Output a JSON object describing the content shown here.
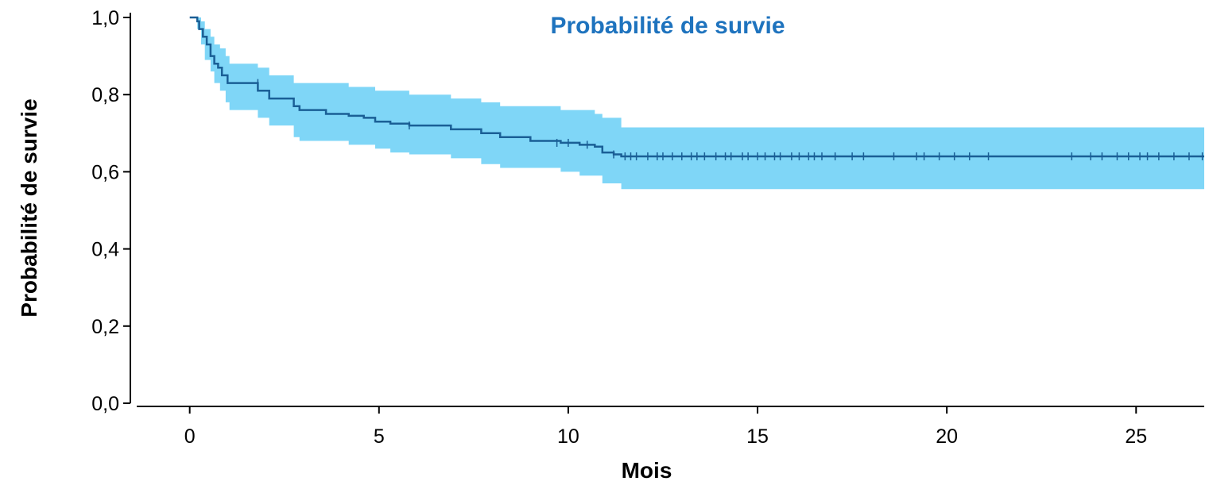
{
  "chart_data": {
    "type": "line",
    "subtype": "kaplan-meier",
    "title": "Probabilité de survie",
    "xlabel": "Mois",
    "ylabel": "Probabilité de survie",
    "xlim": [
      -1.4,
      26.8
    ],
    "ylim": [
      0,
      1
    ],
    "x_ticks": [
      0,
      5,
      10,
      15,
      20,
      25
    ],
    "x_tick_labels": [
      "0",
      "5",
      "10",
      "15",
      "20",
      "25"
    ],
    "y_ticks": [
      0,
      0.2,
      0.4,
      0.6,
      0.8,
      1.0
    ],
    "y_tick_labels": [
      "0,0",
      "0,2",
      "0,4",
      "0,6",
      "0,8",
      "1,0"
    ],
    "grid": false,
    "legend": "none",
    "colors": {
      "title": "#1e73be",
      "line": "#1a5f96",
      "band": "#7fd6f7"
    },
    "series": [
      {
        "steps": [
          [
            0,
            1.0
          ],
          [
            0.2,
            0.99
          ],
          [
            0.25,
            0.97
          ],
          [
            0.35,
            0.95
          ],
          [
            0.45,
            0.93
          ],
          [
            0.55,
            0.9
          ],
          [
            0.65,
            0.88
          ],
          [
            0.75,
            0.87
          ],
          [
            0.85,
            0.85
          ],
          [
            1.0,
            0.83
          ],
          [
            1.8,
            0.81
          ],
          [
            2.1,
            0.79
          ],
          [
            2.75,
            0.77
          ],
          [
            2.9,
            0.76
          ],
          [
            3.6,
            0.75
          ],
          [
            4.2,
            0.745
          ],
          [
            4.6,
            0.74
          ],
          [
            4.9,
            0.73
          ],
          [
            5.3,
            0.725
          ],
          [
            5.8,
            0.72
          ],
          [
            6.9,
            0.71
          ],
          [
            7.7,
            0.7
          ],
          [
            8.2,
            0.69
          ],
          [
            9.0,
            0.68
          ],
          [
            9.8,
            0.675
          ],
          [
            10.3,
            0.67
          ],
          [
            10.7,
            0.665
          ],
          [
            10.9,
            0.65
          ],
          [
            11.2,
            0.645
          ],
          [
            11.4,
            0.64
          ],
          [
            26.8,
            0.64
          ]
        ],
        "ci_lower": [
          [
            0,
            1.0
          ],
          [
            0.2,
            0.97
          ],
          [
            0.3,
            0.93
          ],
          [
            0.4,
            0.89
          ],
          [
            0.55,
            0.86
          ],
          [
            0.65,
            0.83
          ],
          [
            0.8,
            0.81
          ],
          [
            0.95,
            0.78
          ],
          [
            1.05,
            0.76
          ],
          [
            1.8,
            0.74
          ],
          [
            2.1,
            0.72
          ],
          [
            2.75,
            0.69
          ],
          [
            2.9,
            0.68
          ],
          [
            4.2,
            0.67
          ],
          [
            4.9,
            0.66
          ],
          [
            5.3,
            0.65
          ],
          [
            5.8,
            0.645
          ],
          [
            6.9,
            0.635
          ],
          [
            7.7,
            0.62
          ],
          [
            8.2,
            0.61
          ],
          [
            9.8,
            0.6
          ],
          [
            10.3,
            0.59
          ],
          [
            10.9,
            0.57
          ],
          [
            11.4,
            0.555
          ],
          [
            26.8,
            0.555
          ]
        ],
        "ci_upper": [
          [
            0,
            1.0
          ],
          [
            0.2,
            1.0
          ],
          [
            0.3,
            0.99
          ],
          [
            0.4,
            0.97
          ],
          [
            0.55,
            0.95
          ],
          [
            0.65,
            0.93
          ],
          [
            0.8,
            0.92
          ],
          [
            0.95,
            0.9
          ],
          [
            1.05,
            0.88
          ],
          [
            1.8,
            0.87
          ],
          [
            2.1,
            0.85
          ],
          [
            2.75,
            0.83
          ],
          [
            2.9,
            0.83
          ],
          [
            4.2,
            0.82
          ],
          [
            4.9,
            0.81
          ],
          [
            5.8,
            0.8
          ],
          [
            6.9,
            0.79
          ],
          [
            7.7,
            0.78
          ],
          [
            8.2,
            0.77
          ],
          [
            9.8,
            0.76
          ],
          [
            10.7,
            0.75
          ],
          [
            10.9,
            0.74
          ],
          [
            11.4,
            0.715
          ],
          [
            26.8,
            0.715
          ]
        ],
        "censored": [
          [
            1.8,
            0.83
          ],
          [
            5.8,
            0.72
          ],
          [
            9.7,
            0.675
          ],
          [
            10.0,
            0.675
          ],
          [
            10.5,
            0.67
          ],
          [
            11.2,
            0.645
          ],
          [
            11.5,
            0.64
          ],
          [
            11.65,
            0.64
          ],
          [
            11.8,
            0.64
          ],
          [
            12.1,
            0.64
          ],
          [
            12.35,
            0.64
          ],
          [
            12.5,
            0.64
          ],
          [
            12.75,
            0.64
          ],
          [
            13.0,
            0.64
          ],
          [
            13.25,
            0.64
          ],
          [
            13.4,
            0.64
          ],
          [
            13.6,
            0.64
          ],
          [
            13.9,
            0.64
          ],
          [
            14.15,
            0.64
          ],
          [
            14.3,
            0.64
          ],
          [
            14.6,
            0.64
          ],
          [
            14.75,
            0.64
          ],
          [
            15.0,
            0.64
          ],
          [
            15.2,
            0.64
          ],
          [
            15.45,
            0.64
          ],
          [
            15.6,
            0.64
          ],
          [
            15.9,
            0.64
          ],
          [
            16.1,
            0.64
          ],
          [
            16.35,
            0.64
          ],
          [
            16.5,
            0.64
          ],
          [
            16.7,
            0.64
          ],
          [
            17.05,
            0.64
          ],
          [
            17.5,
            0.64
          ],
          [
            17.8,
            0.64
          ],
          [
            18.6,
            0.64
          ],
          [
            19.2,
            0.64
          ],
          [
            19.4,
            0.64
          ],
          [
            19.8,
            0.64
          ],
          [
            20.2,
            0.64
          ],
          [
            20.6,
            0.64
          ],
          [
            21.1,
            0.64
          ],
          [
            23.3,
            0.64
          ],
          [
            23.8,
            0.64
          ],
          [
            24.1,
            0.64
          ],
          [
            24.5,
            0.64
          ],
          [
            24.8,
            0.64
          ],
          [
            25.1,
            0.64
          ],
          [
            25.3,
            0.64
          ],
          [
            25.6,
            0.64
          ],
          [
            26.0,
            0.64
          ],
          [
            26.4,
            0.64
          ],
          [
            26.75,
            0.64
          ]
        ]
      }
    ]
  }
}
